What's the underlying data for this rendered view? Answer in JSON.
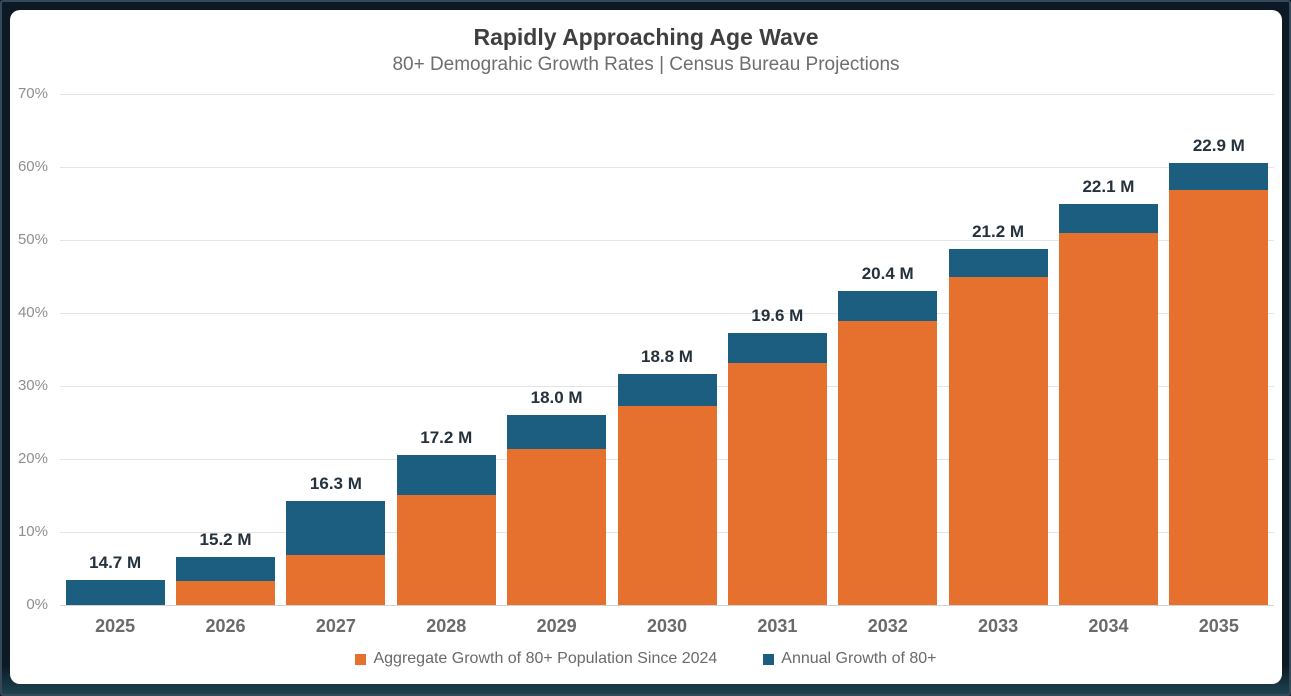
{
  "header": {
    "title": "Rapidly Approaching Age Wave",
    "subtitle": "80+ Demograhic Growth Rates | Census Bureau Projections"
  },
  "colors": {
    "aggregate_orange": "#E6702E",
    "annual_blue": "#1B5E7F",
    "frame_background": "#0D1A26",
    "panel_background": "#FFFFFF",
    "gridline": "#E4E4E4",
    "axis_baseline": "#D2D2D2",
    "y_tick_text": "#8F8F8F",
    "x_tick_text": "#6A6A6A",
    "bar_label_text": "#25313C",
    "title_text": "#3F3F3F",
    "subtitle_text": "#6E6E6E"
  },
  "chart_data": {
    "type": "bar",
    "stacked": true,
    "title": "Rapidly Approaching Age Wave",
    "subtitle": "80+ Demograhic Growth Rates | Census Bureau Projections",
    "categories": [
      "2025",
      "2026",
      "2027",
      "2028",
      "2029",
      "2030",
      "2031",
      "2032",
      "2033",
      "2034",
      "2035"
    ],
    "series": [
      {
        "name": "Aggregate Growth of 80+ Population Since 2024",
        "color": "#E6702E",
        "unit": "%",
        "values": [
          0.0,
          3.3,
          6.9,
          15.1,
          21.4,
          27.3,
          33.1,
          38.9,
          44.9,
          50.9,
          56.9
        ]
      },
      {
        "name": "Annual Growth of 80+",
        "color": "#1B5E7F",
        "unit": "%",
        "values": [
          3.4,
          3.3,
          7.3,
          5.4,
          4.6,
          4.4,
          4.2,
          4.1,
          3.9,
          4.1,
          3.7
        ]
      }
    ],
    "stack_totals_pct": [
      3.4,
      6.6,
      14.2,
      20.5,
      26.0,
      31.7,
      37.3,
      43.0,
      48.8,
      55.0,
      60.6
    ],
    "bar_labels": [
      "14.7 M",
      "15.2 M",
      "16.3 M",
      "17.2 M",
      "18.0 M",
      "18.8 M",
      "19.6 M",
      "20.4 M",
      "21.2 M",
      "22.1 M",
      "22.9 M"
    ],
    "ylabel": "",
    "xlabel": "",
    "ylim": [
      0,
      70
    ],
    "yticks": [
      "0%",
      "10%",
      "20%",
      "30%",
      "40%",
      "50%",
      "60%",
      "70%"
    ],
    "grid": true,
    "legend_position": "bottom"
  },
  "legend": {
    "items": [
      {
        "label": "Aggregate Growth of 80+ Population Since 2024",
        "color": "#E6702E"
      },
      {
        "label": "Annual Growth of 80+",
        "color": "#1B5E7F"
      }
    ]
  }
}
